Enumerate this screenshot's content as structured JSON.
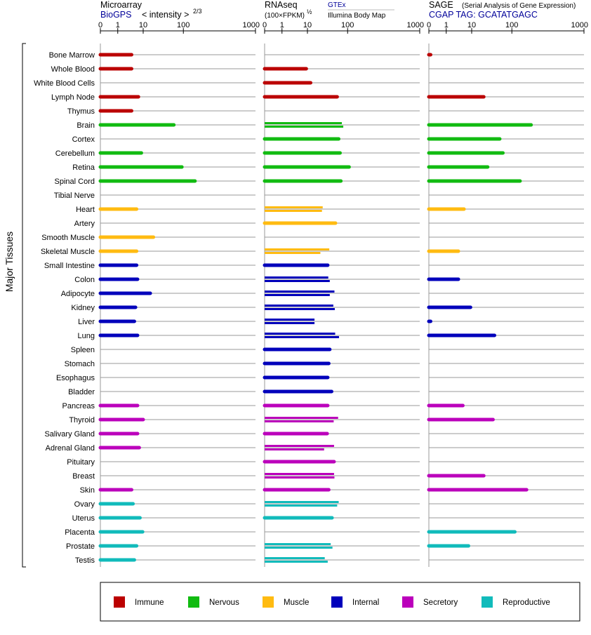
{
  "colors": {
    "Immune": "#bb0000",
    "Nervous": "#11bb11",
    "Muscle": "#ffbb11",
    "Internal": "#0000bb",
    "Secretory": "#bb00bb",
    "Reproductive": "#11bbbb"
  },
  "chart_data": {
    "type": "bar",
    "orientation": "horizontal",
    "axis_title": "Major Tissues",
    "categories": [
      "Bone Marrow",
      "Whole Blood",
      "White Blood Cells",
      "Lymph Node",
      "Thymus",
      "Brain",
      "Cortex",
      "Cerebellum",
      "Retina",
      "Spinal Cord",
      "Tibial Nerve",
      "Heart",
      "Artery",
      "Smooth Muscle",
      "Skeletal Muscle",
      "Small Intestine",
      "Colon",
      "Adipocyte",
      "Kidney",
      "Liver",
      "Lung",
      "Spleen",
      "Stomach",
      "Esophagus",
      "Bladder",
      "Pancreas",
      "Thyroid",
      "Salivary Gland",
      "Adrenal Gland",
      "Pituitary",
      "Breast",
      "Skin",
      "Ovary",
      "Uterus",
      "Placenta",
      "Prostate",
      "Testis"
    ],
    "groups": [
      "Immune",
      "Immune",
      "Immune",
      "Immune",
      "Immune",
      "Nervous",
      "Nervous",
      "Nervous",
      "Nervous",
      "Nervous",
      "Nervous",
      "Muscle",
      "Muscle",
      "Muscle",
      "Muscle",
      "Internal",
      "Internal",
      "Internal",
      "Internal",
      "Internal",
      "Internal",
      "Internal",
      "Internal",
      "Internal",
      "Internal",
      "Secretory",
      "Secretory",
      "Secretory",
      "Secretory",
      "Secretory",
      "Secretory",
      "Secretory",
      "Reproductive",
      "Reproductive",
      "Reproductive",
      "Reproductive",
      "Reproductive"
    ],
    "ticks": [
      "0",
      "1",
      "10",
      "100",
      "1000"
    ],
    "xlim": [
      0,
      1000
    ],
    "legend": [
      "Immune",
      "Nervous",
      "Muscle",
      "Internal",
      "Secretory",
      "Reproductive"
    ],
    "panels": [
      {
        "name": "microarray",
        "title": "Microarray",
        "source": "BioGPS",
        "unit_label": "< intensity >",
        "unit_exp": "2/3",
        "scale": "intensity^(2/3)",
        "values": [
          [
            3.5
          ],
          [
            3.5
          ],
          [],
          [
            6.5
          ],
          [
            3.5
          ],
          [
            58
          ],
          [],
          [
            8.5
          ],
          [
            92
          ],
          [
            145
          ],
          [],
          [
            5.5
          ],
          [],
          [
            18
          ],
          [
            5.5
          ],
          [
            5.5
          ],
          [
            6
          ],
          [
            15
          ],
          [
            5
          ],
          [
            4.5
          ],
          [
            6
          ],
          [],
          [],
          [],
          [],
          [
            6
          ],
          [
            10
          ],
          [
            6
          ],
          [
            7
          ],
          [],
          [],
          [
            3.5
          ],
          [
            4
          ],
          [
            7.5
          ],
          [
            9.5
          ],
          [
            5.5
          ],
          [
            4.5
          ]
        ]
      },
      {
        "name": "rnaseq",
        "title": "RNAseq",
        "unit_label": "(100×FPKM)",
        "unit_exp": "½",
        "source_top": "GTEx",
        "source_bottom": "Illumina Body Map",
        "scale": "sqrt(100*FPKM)",
        "values": [
          [],
          [
            9
          ],
          [
            12
          ],
          [
            55
          ],
          [],
          [
            72,
            78
          ],
          [
            60
          ],
          [
            65
          ],
          [
            105
          ],
          [
            68
          ],
          [],
          [
            24,
            23
          ],
          [
            50
          ],
          [],
          [
            35,
            21
          ],
          [
            32
          ],
          [
            33,
            36
          ],
          [
            47,
            36
          ],
          [
            44,
            48
          ],
          [
            15,
            15
          ],
          [
            49,
            61
          ],
          [
            36
          ],
          [
            34
          ],
          [
            32
          ],
          [
            40
          ],
          [
            32
          ],
          [
            58,
            45
          ],
          [
            31
          ],
          [
            46,
            26
          ],
          [
            46
          ],
          [
            46,
            47
          ],
          [
            34
          ],
          [
            60,
            55
          ],
          [
            41
          ],
          [],
          [
            38,
            42
          ],
          [
            27,
            32
          ]
        ]
      },
      {
        "name": "sage",
        "title": "SAGE",
        "subtitle": "(Serial Analysis of Gene Expression)",
        "tag_label": "CGAP TAG: GCATATGAGC",
        "scale": "tags per million",
        "values": [
          [
            0.1
          ],
          [],
          [],
          [
            20
          ],
          [],
          [
            185
          ],
          [
            50
          ],
          [
            60
          ],
          [
            25
          ],
          [
            130
          ],
          [],
          [
            5
          ],
          [],
          [],
          [
            3
          ],
          [],
          [
            3
          ],
          [],
          [
            9
          ],
          [
            0.1
          ],
          [
            37
          ],
          [],
          [],
          [],
          [],
          [
            4.5
          ],
          [
            34
          ],
          [],
          [],
          [],
          [
            20
          ],
          [
            160
          ],
          [],
          [],
          [
            110
          ],
          [
            7.5
          ],
          []
        ]
      }
    ]
  }
}
